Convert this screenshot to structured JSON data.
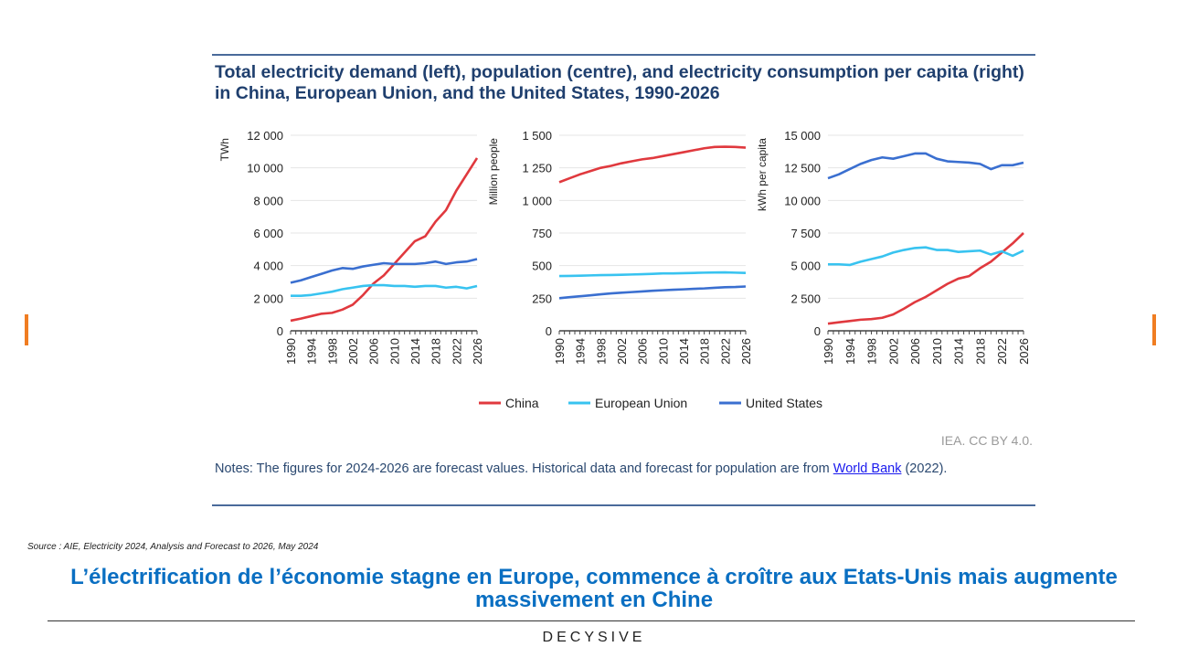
{
  "title": "Total electricity demand (left), population (centre), and electricity consumption per capita (right) in China, European Union, and the United States, 1990-2026",
  "credit": "IEA. CC BY 4.0.",
  "notes": {
    "text": "Notes: The figures for 2024-2026 are forecast values. Historical data and forecast for population are from ",
    "link": "World Bank",
    "tail": " (2022)."
  },
  "source": "Source : AIE, Electricity 2024, Analysis and Forecast to 2026, May 2024",
  "headline": "L’électrification de l’économie stagne en Europe, commence à croître aux Etats-Unis mais augmente massivement en Chine",
  "logo": "DECYSIVE",
  "chart_data": [
    {
      "type": "line",
      "title": "Total electricity demand",
      "ylabel": "TWh",
      "ylim": [
        0,
        12000
      ],
      "yticks": [
        "0",
        "2 000",
        "4 000",
        "6 000",
        "8 000",
        "10 000",
        "12 000"
      ],
      "ytick_values": [
        0,
        2000,
        4000,
        6000,
        8000,
        10000,
        12000
      ],
      "x": [
        1990,
        1992,
        1994,
        1996,
        1998,
        2000,
        2002,
        2004,
        2006,
        2008,
        2010,
        2012,
        2014,
        2016,
        2018,
        2020,
        2022,
        2024,
        2026
      ],
      "xticks": [
        "1990",
        "1994",
        "1998",
        "2002",
        "2006",
        "2010",
        "2014",
        "2018",
        "2022",
        "2026"
      ],
      "series": [
        {
          "name": "China",
          "color": "#e0393e",
          "values": [
            620,
            750,
            900,
            1050,
            1100,
            1300,
            1600,
            2200,
            2900,
            3400,
            4100,
            4800,
            5500,
            5800,
            6700,
            7400,
            8600,
            9600,
            10600
          ]
        },
        {
          "name": "European Union",
          "color": "#38c3f0",
          "values": [
            2150,
            2150,
            2200,
            2300,
            2400,
            2550,
            2650,
            2750,
            2800,
            2800,
            2750,
            2750,
            2700,
            2750,
            2750,
            2650,
            2700,
            2600,
            2750
          ]
        },
        {
          "name": "United States",
          "color": "#3a6fd0",
          "values": [
            2950,
            3100,
            3300,
            3500,
            3700,
            3850,
            3800,
            3950,
            4050,
            4150,
            4100,
            4100,
            4100,
            4150,
            4250,
            4100,
            4200,
            4250,
            4400
          ]
        }
      ]
    },
    {
      "type": "line",
      "title": "Population",
      "ylabel": "Million people",
      "ylim": [
        0,
        1500
      ],
      "yticks": [
        "0",
        "250",
        "500",
        "750",
        "1 000",
        "1 250",
        "1 500"
      ],
      "ytick_values": [
        0,
        250,
        500,
        750,
        1000,
        1250,
        1500
      ],
      "x": [
        1990,
        1992,
        1994,
        1996,
        1998,
        2000,
        2002,
        2004,
        2006,
        2008,
        2010,
        2012,
        2014,
        2016,
        2018,
        2020,
        2022,
        2024,
        2026
      ],
      "xticks": [
        "1990",
        "1994",
        "1998",
        "2002",
        "2006",
        "2010",
        "2014",
        "2018",
        "2022",
        "2026"
      ],
      "series": [
        {
          "name": "China",
          "color": "#e0393e",
          "values": [
            1140,
            1170,
            1200,
            1225,
            1250,
            1265,
            1285,
            1300,
            1315,
            1325,
            1340,
            1355,
            1370,
            1385,
            1400,
            1410,
            1412,
            1410,
            1405
          ]
        },
        {
          "name": "European Union",
          "color": "#38c3f0",
          "values": [
            420,
            421,
            423,
            425,
            427,
            428,
            430,
            432,
            434,
            437,
            440,
            440,
            442,
            444,
            446,
            447,
            448,
            446,
            444
          ]
        },
        {
          "name": "United States",
          "color": "#3a6fd0",
          "values": [
            250,
            258,
            265,
            272,
            280,
            287,
            292,
            297,
            302,
            307,
            311,
            315,
            318,
            322,
            325,
            330,
            334,
            336,
            340
          ]
        }
      ]
    },
    {
      "type": "line",
      "title": "Electricity consumption per capita",
      "ylabel": "kWh per capita",
      "ylim": [
        0,
        15000
      ],
      "yticks": [
        "0",
        "2 500",
        "5 000",
        "7 500",
        "10 000",
        "12 500",
        "15 000"
      ],
      "ytick_values": [
        0,
        2500,
        5000,
        7500,
        10000,
        12500,
        15000
      ],
      "x": [
        1990,
        1992,
        1994,
        1996,
        1998,
        2000,
        2002,
        2004,
        2006,
        2008,
        2010,
        2012,
        2014,
        2016,
        2018,
        2020,
        2022,
        2024,
        2026
      ],
      "xticks": [
        "1990",
        "1994",
        "1998",
        "2002",
        "2006",
        "2010",
        "2014",
        "2018",
        "2022",
        "2026"
      ],
      "series": [
        {
          "name": "China",
          "color": "#e0393e",
          "values": [
            550,
            650,
            750,
            850,
            900,
            1000,
            1250,
            1700,
            2200,
            2600,
            3100,
            3600,
            4000,
            4200,
            4800,
            5300,
            6000,
            6700,
            7500
          ]
        },
        {
          "name": "European Union",
          "color": "#38c3f0",
          "values": [
            5100,
            5100,
            5050,
            5300,
            5500,
            5700,
            6000,
            6200,
            6350,
            6400,
            6200,
            6200,
            6050,
            6100,
            6150,
            5850,
            6100,
            5750,
            6150
          ]
        },
        {
          "name": "United States",
          "color": "#3a6fd0",
          "values": [
            11700,
            12000,
            12400,
            12800,
            13100,
            13300,
            13200,
            13400,
            13600,
            13600,
            13200,
            13000,
            12950,
            12900,
            12800,
            12400,
            12700,
            12700,
            12900
          ]
        }
      ]
    }
  ],
  "legend": [
    {
      "label": "China",
      "color": "#e0393e"
    },
    {
      "label": "European Union",
      "color": "#38c3f0"
    },
    {
      "label": "United States",
      "color": "#3a6fd0"
    }
  ]
}
